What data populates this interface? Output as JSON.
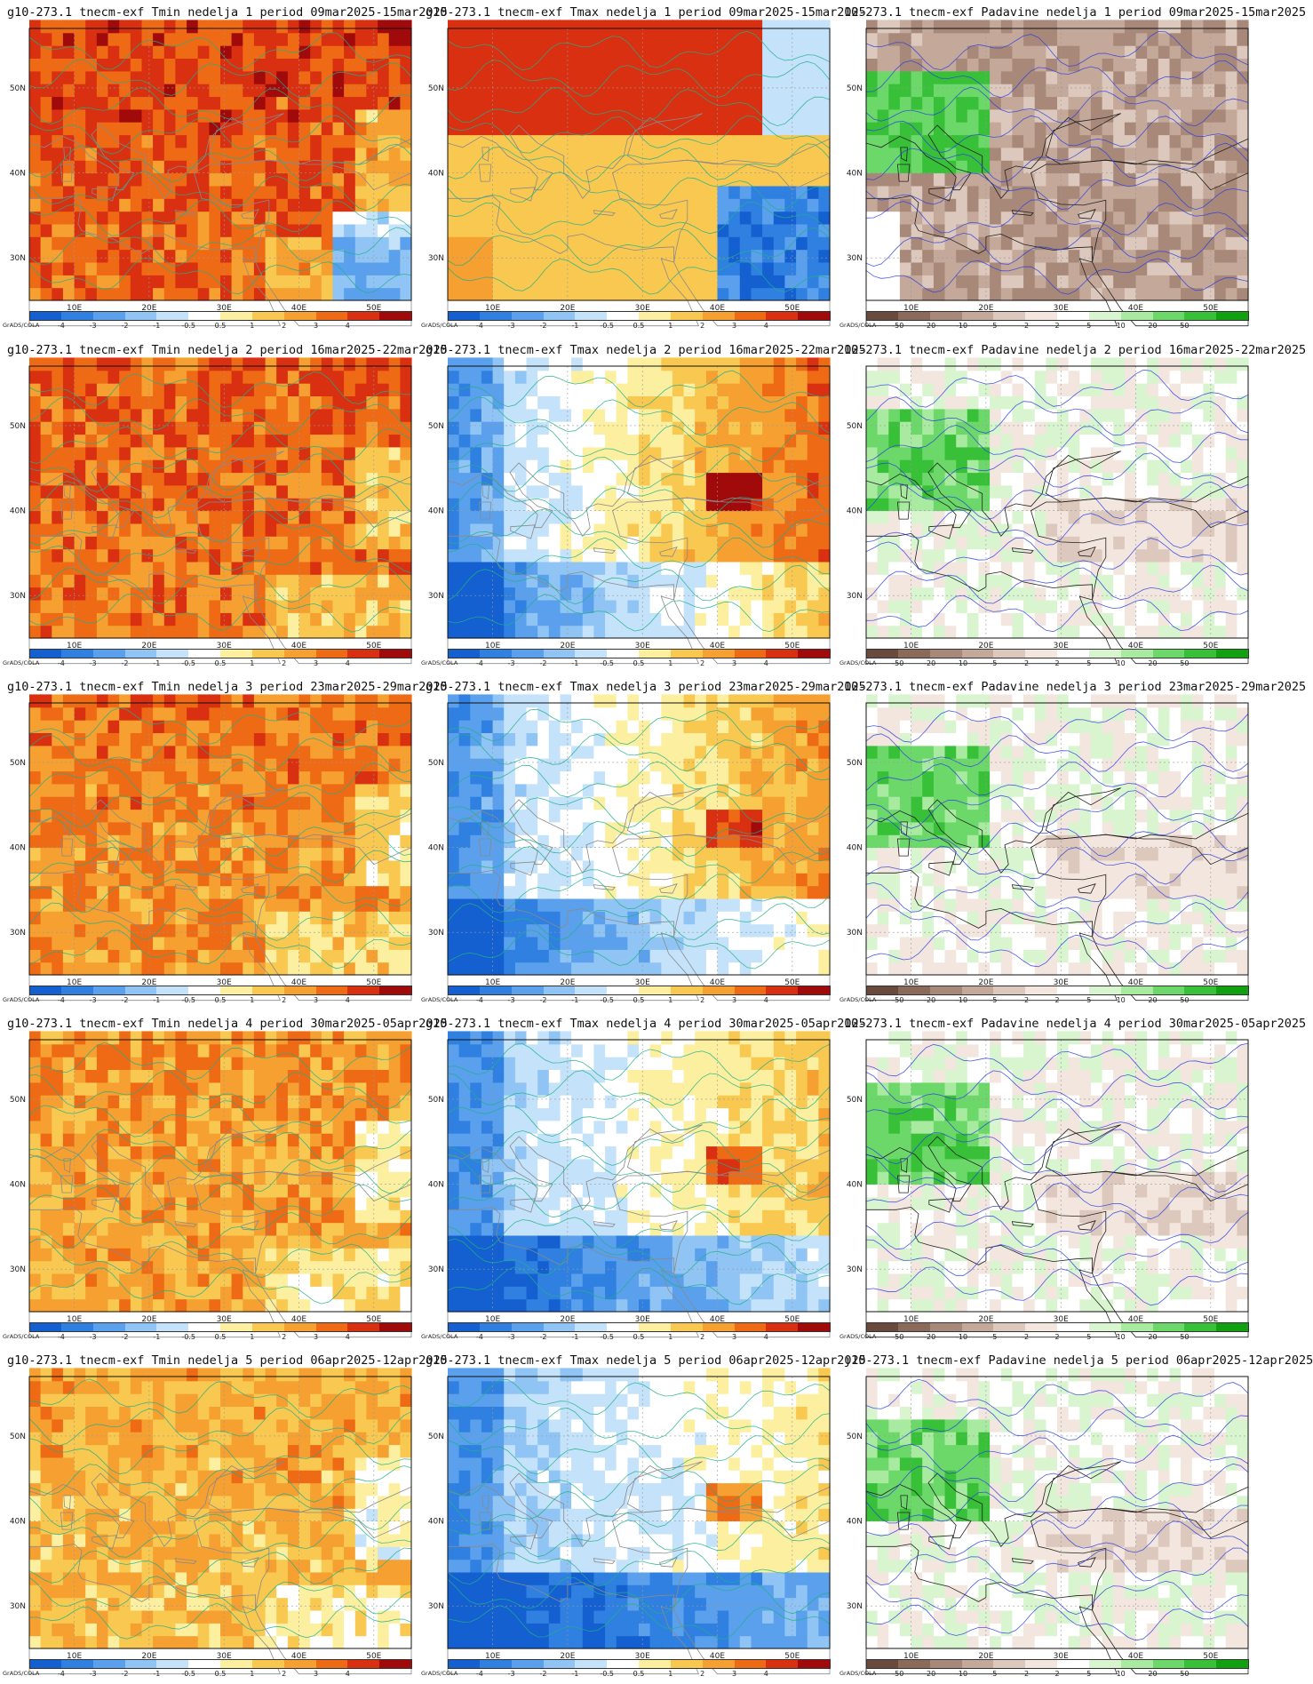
{
  "panels": [
    {
      "title": "g10-273.1 tnecm-exf Tmin nedelja 1 period 09mar2025-15mar2025",
      "var": "tmin",
      "week": 1
    },
    {
      "title": "g10-273.1 tnecm-exf Tmax nedelja 1 period 09mar2025-15mar2025",
      "var": "tmax",
      "week": 1
    },
    {
      "title": "10-273.1 tnecm-exf Padavine nedelja 1 period 09mar2025-15mar2025",
      "var": "prec",
      "week": 1
    },
    {
      "title": "g10-273.1 tnecm-exf Tmin nedelja 2 period 16mar2025-22mar2025",
      "var": "tmin",
      "week": 2
    },
    {
      "title": "g10-273.1 tnecm-exf Tmax nedelja 2 period 16mar2025-22mar2025",
      "var": "tmax",
      "week": 2
    },
    {
      "title": "10-273.1 tnecm-exf Padavine nedelja 2 period 16mar2025-22mar2025",
      "var": "prec",
      "week": 2
    },
    {
      "title": "g10-273.1 tnecm-exf Tmin nedelja 3 period 23mar2025-29mar2025",
      "var": "tmin",
      "week": 3
    },
    {
      "title": "g10-273.1 tnecm-exf Tmax nedelja 3 period 23mar2025-29mar2025",
      "var": "tmax",
      "week": 3
    },
    {
      "title": "10-273.1 tnecm-exf Padavine nedelja 3 period 23mar2025-29mar2025",
      "var": "prec",
      "week": 3
    },
    {
      "title": "g10-273.1 tnecm-exf Tmin nedelja 4 period 30mar2025-05apr2025",
      "var": "tmin",
      "week": 4
    },
    {
      "title": "g10-273.1 tnecm-exf Tmax nedelja 4 period 30mar2025-05apr2025",
      "var": "tmax",
      "week": 4
    },
    {
      "title": "10-273.1 tnecm-exf Padavine nedelja 4 period 30mar2025-05apr2025",
      "var": "prec",
      "week": 4
    },
    {
      "title": "g10-273.1 tnecm-exf Tmin nedelja 5 period 06apr2025-12apr2025",
      "var": "tmin",
      "week": 5
    },
    {
      "title": "g10-273.1 tnecm-exf Tmax nedelja 5 period 06apr2025-12apr2025",
      "var": "tmax",
      "week": 5
    },
    {
      "title": "j10-273.1 tnecm-exf Padavine nedelja 5 period 06apr2025-12apr2025",
      "var": "prec",
      "week": 5
    }
  ],
  "axes": {
    "lon_ticks": [
      "10E",
      "20E",
      "30E",
      "40E",
      "50E"
    ],
    "lat_ticks": [
      "50N",
      "40N",
      "30N"
    ]
  },
  "legends": {
    "temp": {
      "labels": [
        "-4",
        "-3",
        "-2",
        "-1",
        "-0.5",
        "0.5",
        "1",
        "2",
        "3",
        "4"
      ],
      "colors": [
        "#1560d0",
        "#2f80e0",
        "#5aa0ec",
        "#90c4f4",
        "#c4e2fa",
        "#ffffff",
        "#fcf0a0",
        "#f8c850",
        "#f5a030",
        "#ee6a14",
        "#d83010",
        "#a00a0a"
      ]
    },
    "prec": {
      "labels": [
        "-50",
        "-20",
        "-10",
        "-5",
        "-2",
        "2",
        "5",
        "10",
        "20",
        "50"
      ],
      "colors": [
        "#6a4a3c",
        "#8c6a5a",
        "#a88878",
        "#c4a89a",
        "#dcc8bc",
        "#f2e6de",
        "#ffffff",
        "#d8f5d0",
        "#a8eaa0",
        "#6cd86a",
        "#38c038",
        "#10a010"
      ]
    },
    "credit": "GrADS/COLA"
  },
  "map_colors": {
    "land_border": "#8a8a8a",
    "coast": "#222222",
    "temp_contour": "#20b08a",
    "prec_contour": "#2a40e0"
  }
}
